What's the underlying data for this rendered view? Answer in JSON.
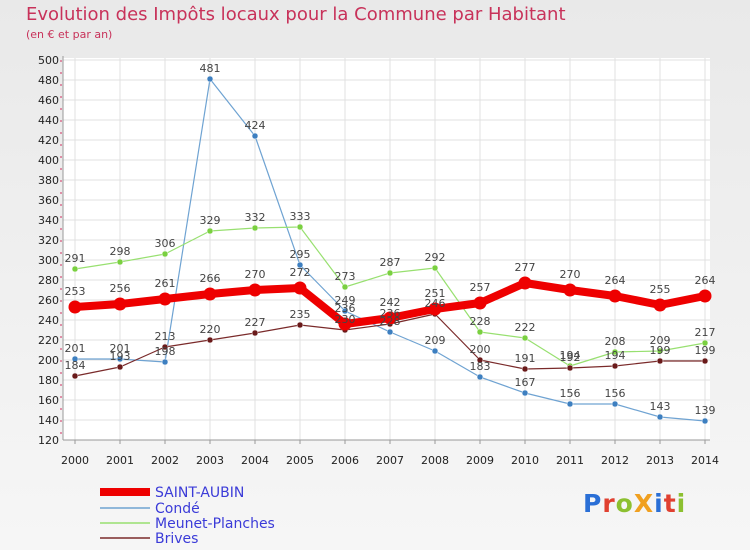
{
  "title": "Evolution des Impôts locaux pour la Commune par Habitant",
  "subtitle": "(en € et par an)",
  "logo": {
    "text": "ProXiti",
    "colors": [
      "#2a6fd6",
      "#e04030",
      "#8cc030",
      "#f0a020",
      "#2a6fd6",
      "#e04030",
      "#8cc030"
    ]
  },
  "colors": {
    "grid": "#e0e0e0",
    "axis": "#999999"
  },
  "chart_data": {
    "type": "line",
    "x": [
      "2000",
      "2001",
      "2002",
      "2003",
      "2004",
      "2005",
      "2006",
      "2007",
      "2008",
      "2009",
      "2010",
      "2011",
      "2012",
      "2013",
      "2014"
    ],
    "ylim": [
      120,
      500
    ],
    "yticks": [
      120,
      140,
      160,
      180,
      200,
      220,
      240,
      260,
      280,
      300,
      320,
      340,
      360,
      380,
      400,
      420,
      440,
      460,
      480,
      500
    ],
    "grid": true,
    "legend_position": "bottom-left",
    "series": [
      {
        "name": "SAINT-AUBIN",
        "color": "#ee0000",
        "marker": "#ee0000",
        "emphasis": true,
        "values": [
          253,
          256,
          261,
          266,
          270,
          272,
          236,
          242,
          251,
          257,
          277,
          270,
          264,
          255,
          264
        ]
      },
      {
        "name": "Condé",
        "color": "#6fa3d2",
        "marker": "#3d7fc0",
        "emphasis": false,
        "values": [
          201,
          201,
          198,
          481,
          424,
          295,
          249,
          228,
          209,
          183,
          167,
          156,
          156,
          143,
          139
        ]
      },
      {
        "name": "Meunet-Planches",
        "color": "#98e070",
        "marker": "#7ad040",
        "emphasis": false,
        "values": [
          291,
          298,
          306,
          329,
          332,
          333,
          273,
          287,
          292,
          228,
          222,
          194,
          208,
          209,
          217
        ]
      },
      {
        "name": "Brives",
        "color": "#7a2a2a",
        "marker": "#6a1a1a",
        "emphasis": false,
        "values": [
          184,
          193,
          213,
          220,
          227,
          235,
          230,
          236,
          246,
          200,
          191,
          192,
          194,
          199,
          199
        ]
      }
    ]
  }
}
